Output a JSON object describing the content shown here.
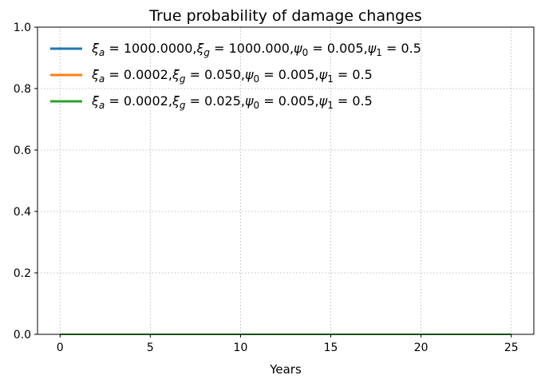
{
  "chart_data": {
    "type": "line",
    "title": "True probability of damage changes",
    "xlabel": "Years",
    "ylabel": "",
    "xlim": [
      -1.25,
      26.25
    ],
    "ylim": [
      0,
      1
    ],
    "xticks": [
      0,
      5,
      10,
      15,
      20,
      25
    ],
    "yticks": [
      0.0,
      0.2,
      0.4,
      0.6,
      0.8,
      1.0
    ],
    "xtick_labels": [
      "0",
      "5",
      "10",
      "15",
      "20",
      "25"
    ],
    "ytick_labels": [
      "0.0",
      "0.2",
      "0.4",
      "0.6",
      "0.8",
      "1.0"
    ],
    "grid": true,
    "legend_position": "top-left",
    "series": [
      {
        "name": "ξa = 1000.0000,ξg = 1000.000,ψ0 = 0.005,ψ1 = 0.5",
        "color": "#1f77b4",
        "x": [
          0,
          5,
          10,
          15,
          20,
          25
        ],
        "y": [
          0,
          0,
          0,
          0,
          0,
          0
        ]
      },
      {
        "name": "ξa = 0.0002,ξg = 0.050,ψ0 = 0.005,ψ1 = 0.5",
        "color": "#ff7f0e",
        "x": [
          0,
          5,
          10,
          15,
          20,
          25
        ],
        "y": [
          0,
          0,
          0,
          0,
          0,
          0
        ]
      },
      {
        "name": "ξa = 0.0002,ξg = 0.025,ψ0 = 0.005,ψ1 = 0.5",
        "color": "#2ca02c",
        "x": [
          0,
          5,
          10,
          15,
          20,
          25
        ],
        "y": [
          0,
          0,
          0,
          0,
          0,
          0
        ]
      }
    ],
    "legend_parts": [
      [
        {
          "t": "ξ",
          "i": true
        },
        {
          "t": "a",
          "sub": true,
          "i": true
        },
        {
          "t": " = 1000.0000,"
        },
        {
          "t": "ξ",
          "i": true
        },
        {
          "t": "g",
          "sub": true,
          "i": true
        },
        {
          "t": " = 1000.000,"
        },
        {
          "t": "ψ",
          "i": true
        },
        {
          "t": "0",
          "sub": true
        },
        {
          "t": " = 0.005,"
        },
        {
          "t": "ψ",
          "i": true
        },
        {
          "t": "1",
          "sub": true
        },
        {
          "t": " = 0.5"
        }
      ],
      [
        {
          "t": "ξ",
          "i": true
        },
        {
          "t": "a",
          "sub": true,
          "i": true
        },
        {
          "t": " = 0.0002,"
        },
        {
          "t": "ξ",
          "i": true
        },
        {
          "t": "g",
          "sub": true,
          "i": true
        },
        {
          "t": " = 0.050,"
        },
        {
          "t": "ψ",
          "i": true
        },
        {
          "t": "0",
          "sub": true
        },
        {
          "t": " = 0.005,"
        },
        {
          "t": "ψ",
          "i": true
        },
        {
          "t": "1",
          "sub": true
        },
        {
          "t": " = 0.5"
        }
      ],
      [
        {
          "t": "ξ",
          "i": true
        },
        {
          "t": "a",
          "sub": true,
          "i": true
        },
        {
          "t": " = 0.0002,"
        },
        {
          "t": "ξ",
          "i": true
        },
        {
          "t": "g",
          "sub": true,
          "i": true
        },
        {
          "t": " = 0.025,"
        },
        {
          "t": "ψ",
          "i": true
        },
        {
          "t": "0",
          "sub": true
        },
        {
          "t": " = 0.005,"
        },
        {
          "t": "ψ",
          "i": true
        },
        {
          "t": "1",
          "sub": true
        },
        {
          "t": " = 0.5"
        }
      ]
    ]
  }
}
